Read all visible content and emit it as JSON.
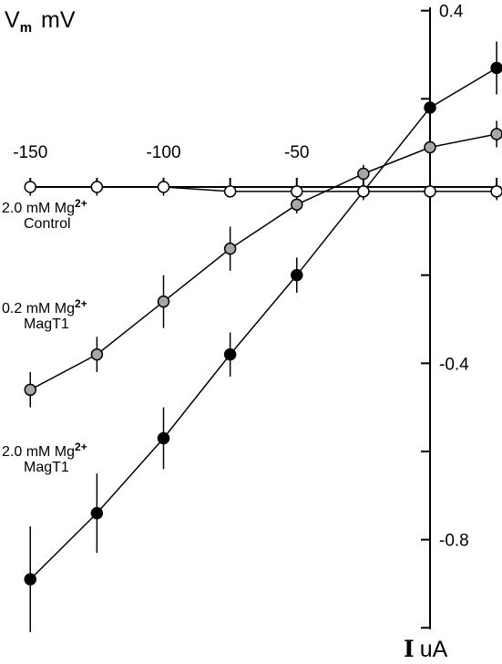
{
  "chart_data": {
    "type": "scatter",
    "title": "",
    "xlabel": {
      "main": "V",
      "sub": "m",
      "unit": "mV"
    },
    "ylabel": {
      "main": "I",
      "unit": "uA"
    },
    "xlim": [
      -150,
      20
    ],
    "ylim": [
      -1.0,
      0.4
    ],
    "x_ticks": [
      -150,
      -125,
      -100,
      -75,
      -50,
      -25,
      0,
      25
    ],
    "x_tick_labels": [
      "-150",
      "-100",
      "-50"
    ],
    "y_ticks": [
      0.4,
      0.2,
      -0.2,
      -0.4,
      -0.6,
      -0.8,
      -1.0
    ],
    "y_tick_labels": [
      "0.4",
      "-0.4",
      "-0.8"
    ],
    "grid": false,
    "legend": "none",
    "series": [
      {
        "label_lines": [
          "2.0 mM Mg",
          "Control"
        ],
        "superscript": "2+",
        "marker_color": "#ffffff",
        "x": [
          -150,
          -125,
          -100,
          -75,
          -50,
          -25,
          0,
          25
        ],
        "y": [
          0.0,
          0.0,
          0.0,
          -0.01,
          -0.01,
          -0.01,
          -0.01,
          -0.01
        ],
        "err": [
          0.02,
          0.02,
          0.02,
          0.0,
          0.0,
          0.0,
          0.0,
          0.02
        ]
      },
      {
        "label_lines": [
          "0.2 mM Mg",
          "MagT1"
        ],
        "superscript": "2+",
        "marker_color": "#a6a6a6",
        "x": [
          -150,
          -125,
          -100,
          -75,
          -50,
          -25,
          0,
          25
        ],
        "y": [
          -0.46,
          -0.38,
          -0.26,
          -0.14,
          -0.04,
          0.03,
          0.09,
          0.12
        ],
        "err": [
          0.04,
          0.04,
          0.06,
          0.05,
          0.02,
          0.02,
          0.0,
          0.03
        ]
      },
      {
        "label_lines": [
          "2.0 mM Mg",
          "MagT1"
        ],
        "superscript": "2+",
        "marker_color": "#000000",
        "x": [
          -150,
          -125,
          -100,
          -75,
          -50,
          -25,
          0,
          25
        ],
        "y": [
          -0.89,
          -0.74,
          -0.57,
          -0.38,
          -0.2,
          -0.01,
          0.18,
          0.27
        ],
        "err": [
          0.12,
          0.09,
          0.07,
          0.05,
          0.04,
          0.02,
          0.0,
          0.06
        ]
      }
    ]
  }
}
